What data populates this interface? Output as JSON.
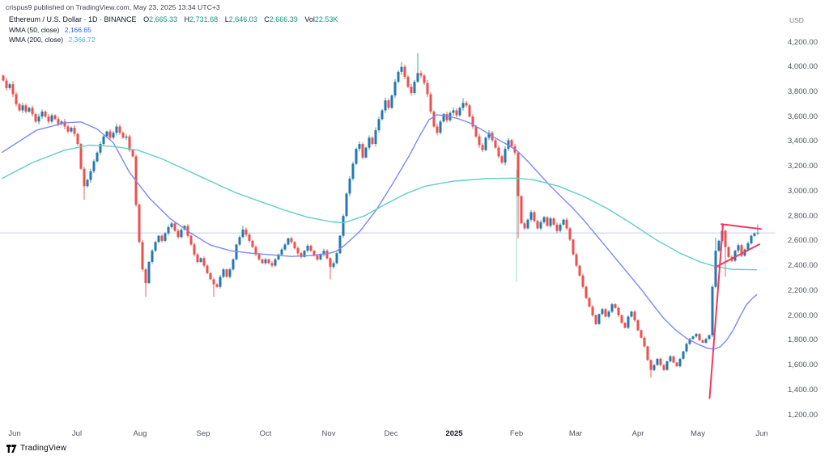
{
  "attribution": "crispus9 published on TradingView.com, May 23, 2025 13:34 UTC+3",
  "header": {
    "symbol_line": "Ethereum / U.S. Dollar · 1D · BINANCE",
    "ohlc": {
      "o_label": "O",
      "o_value": "2,665.33",
      "h_label": "H",
      "h_value": "2,731.68",
      "l_label": "L",
      "l_value": "2,646.03",
      "c_label": "C",
      "c_value": "2,666.39",
      "vol_label": "Vol",
      "vol_value": "22.53K",
      "value_color": "#089981"
    },
    "indicators": [
      {
        "label": "WMA (50, close)",
        "value": "2,166.65",
        "color": "#2962FF"
      },
      {
        "label": "WMA (200, close)",
        "value": "2,366.72",
        "color": "#29c2d4"
      }
    ]
  },
  "price_axis": {
    "unit": "USD",
    "labels": [
      "4,200.00",
      "4,000.00",
      "3,800.00",
      "3,600.00",
      "3,400.00",
      "3,200.00",
      "3,000.00",
      "2,800.00",
      "2,600.00",
      "2,400.00",
      "2,200.00",
      "2,000.00",
      "1,800.00",
      "1,600.00",
      "1,400.00",
      "1,200.00"
    ],
    "values": [
      4200,
      4000,
      3800,
      3600,
      3400,
      3200,
      3000,
      2800,
      2600,
      2400,
      2200,
      2000,
      1800,
      1600,
      1400,
      1200
    ]
  },
  "time_axis": {
    "labels": [
      {
        "label": "Jun",
        "x": 18,
        "bold": false
      },
      {
        "label": "Jul",
        "x": 95,
        "bold": false
      },
      {
        "label": "Aug",
        "x": 173,
        "bold": false
      },
      {
        "label": "Sep",
        "x": 251,
        "bold": false
      },
      {
        "label": "Oct",
        "x": 328,
        "bold": false
      },
      {
        "label": "Nov",
        "x": 406,
        "bold": false
      },
      {
        "label": "Dec",
        "x": 483,
        "bold": false
      },
      {
        "label": "2025",
        "x": 561,
        "bold": true
      },
      {
        "label": "Feb",
        "x": 638,
        "bold": false
      },
      {
        "label": "Mar",
        "x": 711,
        "bold": false
      },
      {
        "label": "Apr",
        "x": 788,
        "bold": false
      },
      {
        "label": "May",
        "x": 862,
        "bold": false
      },
      {
        "label": "Jun",
        "x": 941,
        "bold": false
      }
    ]
  },
  "logo": {
    "text": "TradingView"
  },
  "chart_data": {
    "type": "candlestick",
    "title": "Ethereum / U.S. Dollar · 1D · BINANCE",
    "ylabel": "USD",
    "ylim": [
      1200,
      4200
    ],
    "x_range_months": [
      "Jun 2024",
      "Jun 2025"
    ],
    "mapping": {
      "p1": 4200,
      "y1": 52,
      "p2": 1200,
      "y2": 513,
      "plot_left": 0,
      "plot_right": 958
    },
    "colors": {
      "up_body": "#2577b1",
      "up_wick": "#3aa392",
      "down_body": "#ee4f4d",
      "down_wick": "#ec5d59",
      "wma50": "#7d88f2",
      "wma200": "#5ecfc5",
      "trendline": "#f23a5e",
      "hline": "#c6cdf4",
      "vline": "#8fd9c8"
    },
    "first_open": 3930,
    "candles": [
      [
        4,
        3890
      ],
      [
        8,
        3830
      ],
      [
        12,
        3860
      ],
      [
        16,
        3780
      ],
      [
        20,
        3700
      ],
      [
        24,
        3650
      ],
      [
        28,
        3690
      ],
      [
        32,
        3640
      ],
      [
        36,
        3670
      ],
      [
        40,
        3620
      ],
      [
        44,
        3560
      ],
      [
        48,
        3600
      ],
      [
        52,
        3640
      ],
      [
        56,
        3600
      ],
      [
        60,
        3560
      ],
      [
        64,
        3610
      ],
      [
        68,
        3580
      ],
      [
        72,
        3540
      ],
      [
        76,
        3560
      ],
      [
        80,
        3520
      ],
      [
        84,
        3480
      ],
      [
        88,
        3510
      ],
      [
        92,
        3460
      ],
      [
        96,
        3380
      ],
      [
        100,
        3180
      ],
      [
        104,
        3040
      ],
      [
        108,
        3090
      ],
      [
        112,
        3160
      ],
      [
        116,
        3240
      ],
      [
        120,
        3310
      ],
      [
        124,
        3380
      ],
      [
        128,
        3440
      ],
      [
        132,
        3480
      ],
      [
        136,
        3430
      ],
      [
        140,
        3470
      ],
      [
        144,
        3520
      ],
      [
        148,
        3470
      ],
      [
        152,
        3430
      ],
      [
        156,
        3440
      ],
      [
        160,
        3330
      ],
      [
        164,
        3280
      ],
      [
        168,
        2890
      ],
      [
        172,
        2590
      ],
      [
        176,
        2370
      ],
      [
        180,
        2260
      ],
      [
        184,
        2430
      ],
      [
        188,
        2520
      ],
      [
        192,
        2590
      ],
      [
        196,
        2640
      ],
      [
        200,
        2600
      ],
      [
        204,
        2660
      ],
      [
        208,
        2710
      ],
      [
        212,
        2740
      ],
      [
        216,
        2680
      ],
      [
        220,
        2630
      ],
      [
        224,
        2690
      ],
      [
        228,
        2720
      ],
      [
        232,
        2640
      ],
      [
        236,
        2570
      ],
      [
        240,
        2490
      ],
      [
        244,
        2430
      ],
      [
        248,
        2460
      ],
      [
        252,
        2400
      ],
      [
        256,
        2340
      ],
      [
        260,
        2290
      ],
      [
        264,
        2250
      ],
      [
        268,
        2230
      ],
      [
        272,
        2310
      ],
      [
        276,
        2370
      ],
      [
        280,
        2310
      ],
      [
        284,
        2370
      ],
      [
        288,
        2450
      ],
      [
        292,
        2570
      ],
      [
        296,
        2630
      ],
      [
        300,
        2690
      ],
      [
        304,
        2650
      ],
      [
        308,
        2600
      ],
      [
        312,
        2550
      ],
      [
        316,
        2490
      ],
      [
        320,
        2450
      ],
      [
        324,
        2420
      ],
      [
        328,
        2450
      ],
      [
        332,
        2420
      ],
      [
        336,
        2400
      ],
      [
        340,
        2450
      ],
      [
        344,
        2490
      ],
      [
        348,
        2530
      ],
      [
        352,
        2570
      ],
      [
        356,
        2620
      ],
      [
        360,
        2590
      ],
      [
        364,
        2540
      ],
      [
        368,
        2500
      ],
      [
        372,
        2470
      ],
      [
        376,
        2520
      ],
      [
        380,
        2560
      ],
      [
        384,
        2520
      ],
      [
        388,
        2480
      ],
      [
        392,
        2450
      ],
      [
        396,
        2490
      ],
      [
        400,
        2520
      ],
      [
        404,
        2460
      ],
      [
        408,
        2390
      ],
      [
        412,
        2420
      ],
      [
        416,
        2500
      ],
      [
        420,
        2640
      ],
      [
        424,
        2800
      ],
      [
        428,
        2980
      ],
      [
        432,
        3100
      ],
      [
        436,
        3220
      ],
      [
        440,
        3340
      ],
      [
        444,
        3380
      ],
      [
        448,
        3270
      ],
      [
        452,
        3350
      ],
      [
        456,
        3430
      ],
      [
        460,
        3380
      ],
      [
        464,
        3490
      ],
      [
        468,
        3580
      ],
      [
        472,
        3650
      ],
      [
        476,
        3730
      ],
      [
        480,
        3670
      ],
      [
        484,
        3770
      ],
      [
        488,
        3880
      ],
      [
        492,
        3960
      ],
      [
        496,
        4000
      ],
      [
        500,
        3920
      ],
      [
        504,
        3840
      ],
      [
        508,
        3790
      ],
      [
        512,
        3880
      ],
      [
        516,
        3950
      ],
      [
        520,
        3930
      ],
      [
        524,
        3870
      ],
      [
        528,
        3780
      ],
      [
        532,
        3640
      ],
      [
        536,
        3520
      ],
      [
        540,
        3470
      ],
      [
        544,
        3560
      ],
      [
        548,
        3620
      ],
      [
        552,
        3570
      ],
      [
        556,
        3630
      ],
      [
        560,
        3650
      ],
      [
        564,
        3610
      ],
      [
        568,
        3670
      ],
      [
        572,
        3710
      ],
      [
        576,
        3690
      ],
      [
        580,
        3600
      ],
      [
        584,
        3520
      ],
      [
        588,
        3440
      ],
      [
        592,
        3370
      ],
      [
        596,
        3330
      ],
      [
        600,
        3430
      ],
      [
        604,
        3470
      ],
      [
        608,
        3410
      ],
      [
        612,
        3350
      ],
      [
        616,
        3280
      ],
      [
        620,
        3230
      ],
      [
        624,
        3340
      ],
      [
        628,
        3410
      ],
      [
        632,
        3360
      ],
      [
        636,
        3310
      ],
      [
        640,
        2960
      ],
      [
        644,
        2740
      ],
      [
        648,
        2700
      ],
      [
        652,
        2770
      ],
      [
        656,
        2830
      ],
      [
        660,
        2760
      ],
      [
        664,
        2700
      ],
      [
        668,
        2750
      ],
      [
        672,
        2790
      ],
      [
        676,
        2720
      ],
      [
        680,
        2780
      ],
      [
        684,
        2730
      ],
      [
        688,
        2680
      ],
      [
        692,
        2730
      ],
      [
        696,
        2770
      ],
      [
        700,
        2700
      ],
      [
        704,
        2610
      ],
      [
        708,
        2490
      ],
      [
        712,
        2400
      ],
      [
        716,
        2320
      ],
      [
        720,
        2230
      ],
      [
        724,
        2140
      ],
      [
        728,
        2070
      ],
      [
        732,
        2000
      ],
      [
        736,
        1930
      ],
      [
        740,
        2010
      ],
      [
        744,
        2050
      ],
      [
        748,
        1990
      ],
      [
        752,
        2030
      ],
      [
        756,
        2090
      ],
      [
        760,
        2060
      ],
      [
        764,
        2000
      ],
      [
        768,
        1940
      ],
      [
        772,
        1900
      ],
      [
        776,
        1990
      ],
      [
        780,
        2030
      ],
      [
        784,
        1960
      ],
      [
        788,
        1880
      ],
      [
        792,
        1820
      ],
      [
        796,
        1750
      ],
      [
        800,
        1640
      ],
      [
        804,
        1560
      ],
      [
        808,
        1600
      ],
      [
        812,
        1650
      ],
      [
        816,
        1600
      ],
      [
        820,
        1560
      ],
      [
        824,
        1630
      ],
      [
        828,
        1670
      ],
      [
        832,
        1620
      ],
      [
        836,
        1590
      ],
      [
        840,
        1650
      ],
      [
        844,
        1710
      ],
      [
        848,
        1770
      ],
      [
        852,
        1810
      ],
      [
        856,
        1830
      ],
      [
        860,
        1850
      ],
      [
        864,
        1800
      ],
      [
        868,
        1780
      ],
      [
        872,
        1810
      ],
      [
        876,
        1840
      ],
      [
        880,
        2230
      ],
      [
        884,
        2520
      ],
      [
        888,
        2600
      ],
      [
        892,
        2680
      ],
      [
        896,
        2550
      ],
      [
        900,
        2470
      ],
      [
        904,
        2440
      ],
      [
        908,
        2520
      ],
      [
        912,
        2565
      ],
      [
        916,
        2480
      ],
      [
        920,
        2530
      ],
      [
        924,
        2580
      ],
      [
        928,
        2640
      ],
      [
        932,
        2660
      ],
      [
        936,
        2666
      ]
    ],
    "wick_overrides": {
      "104": {
        "lo": 2930
      },
      "180": {
        "lo": 2150
      },
      "264": {
        "lo": 2150
      },
      "300": {
        "hi": 2720
      },
      "408": {
        "lo": 2290
      },
      "496": {
        "hi": 4040
      },
      "516": {
        "hi": 4110
      },
      "572": {
        "hi": 3748
      },
      "640": {
        "lo": 2620
      },
      "804": {
        "lo": 1500
      },
      "884": {
        "hi": 2625
      },
      "892": {
        "hi": 2736
      },
      "896": {
        "lo": 2310
      },
      "936": {
        "hi": 2731,
        "lo": 2646
      }
    },
    "series": [
      {
        "name": "WMA (50, close)",
        "value": 2166.65,
        "points": [
          [
            2,
            3310
          ],
          [
            45,
            3490
          ],
          [
            80,
            3550
          ],
          [
            100,
            3557
          ],
          [
            120,
            3500
          ],
          [
            140,
            3390
          ],
          [
            160,
            3150
          ],
          [
            185,
            2940
          ],
          [
            210,
            2780
          ],
          [
            235,
            2665
          ],
          [
            260,
            2565
          ],
          [
            285,
            2520
          ],
          [
            310,
            2500
          ],
          [
            335,
            2487
          ],
          [
            360,
            2474
          ],
          [
            385,
            2482
          ],
          [
            405,
            2497
          ],
          [
            415,
            2515
          ],
          [
            425,
            2560
          ],
          [
            445,
            2680
          ],
          [
            465,
            2850
          ],
          [
            485,
            3060
          ],
          [
            505,
            3280
          ],
          [
            518,
            3440
          ],
          [
            530,
            3575
          ],
          [
            540,
            3615
          ],
          [
            552,
            3605
          ],
          [
            565,
            3585
          ],
          [
            580,
            3550
          ],
          [
            595,
            3495
          ],
          [
            610,
            3435
          ],
          [
            625,
            3380
          ],
          [
            638,
            3330
          ],
          [
            652,
            3240
          ],
          [
            666,
            3140
          ],
          [
            680,
            3040
          ],
          [
            694,
            2950
          ],
          [
            708,
            2860
          ],
          [
            722,
            2760
          ],
          [
            736,
            2650
          ],
          [
            750,
            2540
          ],
          [
            764,
            2430
          ],
          [
            778,
            2320
          ],
          [
            792,
            2210
          ],
          [
            806,
            2090
          ],
          [
            820,
            1975
          ],
          [
            834,
            1885
          ],
          [
            848,
            1815
          ],
          [
            862,
            1768
          ],
          [
            874,
            1735
          ],
          [
            882,
            1728
          ],
          [
            890,
            1748
          ],
          [
            898,
            1805
          ],
          [
            906,
            1885
          ],
          [
            914,
            1990
          ],
          [
            922,
            2085
          ],
          [
            929,
            2135
          ],
          [
            935,
            2167
          ]
        ]
      },
      {
        "name": "WMA (200, close)",
        "value": 2366.72,
        "points": [
          [
            2,
            3100
          ],
          [
            40,
            3230
          ],
          [
            80,
            3330
          ],
          [
            110,
            3370
          ],
          [
            140,
            3360
          ],
          [
            170,
            3330
          ],
          [
            200,
            3260
          ],
          [
            230,
            3170
          ],
          [
            260,
            3080
          ],
          [
            290,
            2990
          ],
          [
            320,
            2920
          ],
          [
            350,
            2850
          ],
          [
            380,
            2790
          ],
          [
            410,
            2752
          ],
          [
            425,
            2745
          ],
          [
            450,
            2800
          ],
          [
            475,
            2890
          ],
          [
            500,
            2975
          ],
          [
            525,
            3040
          ],
          [
            560,
            3080
          ],
          [
            600,
            3100
          ],
          [
            637,
            3105
          ],
          [
            660,
            3090
          ],
          [
            690,
            3040
          ],
          [
            720,
            2960
          ],
          [
            750,
            2860
          ],
          [
            780,
            2740
          ],
          [
            810,
            2610
          ],
          [
            840,
            2500
          ],
          [
            865,
            2430
          ],
          [
            885,
            2390
          ],
          [
            905,
            2370
          ],
          [
            935,
            2367
          ]
        ]
      }
    ],
    "trendlines": [
      {
        "x1": 876.5,
        "p1": 1334,
        "x2": 893,
        "p2": 2728
      },
      {
        "x1": 883,
        "p1": 2385,
        "x2": 938,
        "p2": 2572
      },
      {
        "x1": 891,
        "p1": 2734,
        "x2": 940,
        "p2": 2695
      }
    ],
    "hline": {
      "price": 2663,
      "x1": 0,
      "x2": 958
    },
    "vline": {
      "x": 638,
      "p1": 3170,
      "p2": 2270
    }
  }
}
